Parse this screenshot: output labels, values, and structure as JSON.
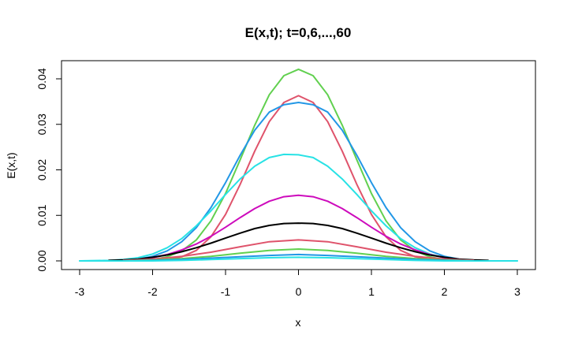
{
  "chart_data": {
    "type": "line",
    "title": "E(x,t); t=0,6,...,60",
    "xlabel": "x",
    "ylabel": "E(x,t)",
    "xlim": [
      -3,
      3
    ],
    "ylim": [
      0,
      0.042
    ],
    "xticks": [
      -3,
      -2,
      -1,
      0,
      1,
      2,
      3
    ],
    "yticks": [
      0.0,
      0.01,
      0.02,
      0.03,
      0.04
    ],
    "xtick_labels": [
      "-3",
      "-2",
      "-1",
      "0",
      "1",
      "2",
      "3"
    ],
    "ytick_labels": [
      "0.00",
      "0.01",
      "0.02",
      "0.03",
      "0.04"
    ],
    "grid": false,
    "legend": "none",
    "series": [
      {
        "color": "#61d04f",
        "x": [
          -2.6,
          -2.4,
          -2.2,
          -2.0,
          -1.8,
          -1.6,
          -1.4,
          -1.2,
          -1.0,
          -0.8,
          -0.6,
          -0.4,
          -0.2,
          0.0,
          0.2,
          0.4,
          0.6,
          0.8,
          1.0,
          1.2,
          1.4,
          1.6,
          1.8,
          2.0,
          2.2,
          2.4,
          2.6
        ],
        "y": [
          0.0,
          0.0,
          0.0001,
          0.0003,
          0.0009,
          0.0022,
          0.0046,
          0.0088,
          0.0148,
          0.0222,
          0.0298,
          0.0365,
          0.0407,
          0.0421,
          0.0407,
          0.0365,
          0.0298,
          0.0222,
          0.0148,
          0.0088,
          0.0046,
          0.0022,
          0.0009,
          0.0003,
          0.0001,
          0.0,
          0.0
        ]
      },
      {
        "color": "#df536b",
        "x": [
          -2.0,
          -1.8,
          -1.6,
          -1.4,
          -1.2,
          -1.0,
          -0.8,
          -0.6,
          -0.4,
          -0.2,
          0.0,
          0.2,
          0.4,
          0.6,
          0.8,
          1.0,
          1.2,
          1.4,
          1.6,
          1.8,
          2.0
        ],
        "y": [
          0.0001,
          0.0003,
          0.0009,
          0.0023,
          0.0053,
          0.0102,
          0.0168,
          0.0241,
          0.0306,
          0.0348,
          0.0363,
          0.0348,
          0.0306,
          0.0241,
          0.0168,
          0.0102,
          0.0053,
          0.0023,
          0.0009,
          0.0003,
          0.0001
        ]
      },
      {
        "color": "#2297e6",
        "x": [
          -2.6,
          -2.4,
          -2.2,
          -2.0,
          -1.8,
          -1.6,
          -1.4,
          -1.2,
          -1.0,
          -0.8,
          -0.6,
          -0.4,
          -0.2,
          0.0,
          0.2,
          0.4,
          0.6,
          0.8,
          1.0,
          1.2,
          1.4,
          1.6,
          1.8,
          2.0,
          2.2,
          2.4,
          2.6
        ],
        "y": [
          0.0,
          0.0001,
          0.0004,
          0.001,
          0.0022,
          0.0042,
          0.0073,
          0.0117,
          0.0172,
          0.0232,
          0.0287,
          0.0327,
          0.0343,
          0.0348,
          0.0343,
          0.0327,
          0.0287,
          0.0232,
          0.0172,
          0.0117,
          0.0073,
          0.0042,
          0.0022,
          0.001,
          0.0004,
          0.0001,
          0.0
        ]
      },
      {
        "color": "#28e2e5",
        "x": [
          -3.0,
          -2.6,
          -2.4,
          -2.2,
          -2.0,
          -1.8,
          -1.6,
          -1.4,
          -1.2,
          -1.0,
          -0.8,
          -0.6,
          -0.4,
          -0.2,
          0.0,
          0.2,
          0.4,
          0.6,
          0.8,
          1.0,
          1.2,
          1.4,
          1.6,
          1.8,
          2.0,
          2.2,
          2.4,
          2.6,
          3.0
        ],
        "y": [
          0.0,
          0.0001,
          0.0003,
          0.0007,
          0.0015,
          0.0029,
          0.0049,
          0.0077,
          0.011,
          0.0146,
          0.018,
          0.0208,
          0.0227,
          0.0234,
          0.0233,
          0.0227,
          0.0208,
          0.018,
          0.0146,
          0.011,
          0.0077,
          0.0049,
          0.0029,
          0.0015,
          0.0007,
          0.0003,
          0.0001,
          0.0,
          0.0
        ]
      },
      {
        "color": "#cd0bbc",
        "x": [
          -2.4,
          -2.2,
          -2.0,
          -1.8,
          -1.6,
          -1.4,
          -1.2,
          -1.0,
          -0.8,
          -0.6,
          -0.4,
          -0.2,
          0.0,
          0.2,
          0.4,
          0.6,
          0.8,
          1.0,
          1.2,
          1.4,
          1.6,
          1.8,
          2.0,
          2.2,
          2.4
        ],
        "y": [
          0.0001,
          0.0003,
          0.0007,
          0.0014,
          0.0024,
          0.0037,
          0.0054,
          0.0074,
          0.0095,
          0.0115,
          0.0131,
          0.0141,
          0.0144,
          0.0141,
          0.0131,
          0.0115,
          0.0095,
          0.0074,
          0.0054,
          0.0037,
          0.0024,
          0.0014,
          0.0007,
          0.0003,
          0.0001
        ]
      },
      {
        "color": "#000000",
        "x": [
          -2.6,
          -2.4,
          -2.2,
          -2.0,
          -1.8,
          -1.6,
          -1.4,
          -1.2,
          -1.0,
          -0.8,
          -0.6,
          -0.4,
          -0.2,
          0.0,
          0.2,
          0.4,
          0.6,
          0.8,
          1.0,
          1.2,
          1.4,
          1.6,
          1.8,
          2.0,
          2.2,
          2.4,
          2.6
        ],
        "y": [
          0.0001,
          0.0002,
          0.0004,
          0.0008,
          0.0013,
          0.002,
          0.0029,
          0.0039,
          0.005,
          0.0061,
          0.0071,
          0.0078,
          0.0082,
          0.0083,
          0.0082,
          0.0078,
          0.0071,
          0.0061,
          0.005,
          0.0039,
          0.0029,
          0.002,
          0.0013,
          0.0008,
          0.0004,
          0.0002,
          0.0001
        ]
      },
      {
        "color": "#df536b",
        "x": [
          -2.4,
          -2.0,
          -1.6,
          -1.2,
          -0.8,
          -0.4,
          0.0,
          0.4,
          0.8,
          1.2,
          1.6,
          2.0,
          2.4
        ],
        "y": [
          0.0001,
          0.0004,
          0.001,
          0.0019,
          0.0031,
          0.0042,
          0.0046,
          0.0042,
          0.0031,
          0.0019,
          0.001,
          0.0004,
          0.0001
        ]
      },
      {
        "color": "#61d04f",
        "x": [
          -2.4,
          -2.0,
          -1.6,
          -1.2,
          -0.8,
          -0.4,
          0.0,
          0.4,
          0.8,
          1.2,
          1.6,
          2.0,
          2.4
        ],
        "y": [
          0.0,
          0.0002,
          0.0005,
          0.001,
          0.0017,
          0.0023,
          0.0026,
          0.0023,
          0.0017,
          0.001,
          0.0005,
          0.0002,
          0.0
        ]
      },
      {
        "color": "#2297e6",
        "x": [
          -2.4,
          -2.0,
          -1.6,
          -1.2,
          -0.8,
          -0.4,
          0.0,
          0.4,
          0.8,
          1.2,
          1.6,
          2.0,
          2.4
        ],
        "y": [
          0.0,
          0.0001,
          0.0003,
          0.0006,
          0.0009,
          0.0012,
          0.0014,
          0.0012,
          0.0009,
          0.0006,
          0.0003,
          0.0001,
          0.0
        ]
      },
      {
        "color": "#28e2e5",
        "x": [
          -3.0,
          -2.0,
          -1.6,
          -1.2,
          -0.8,
          -0.4,
          0.0,
          0.4,
          0.8,
          1.2,
          1.6,
          2.0,
          3.0
        ],
        "y": [
          0.0,
          0.0,
          0.0001,
          0.0003,
          0.0005,
          0.0007,
          0.0008,
          0.0007,
          0.0005,
          0.0003,
          0.0001,
          0.0,
          0.0
        ]
      }
    ]
  }
}
